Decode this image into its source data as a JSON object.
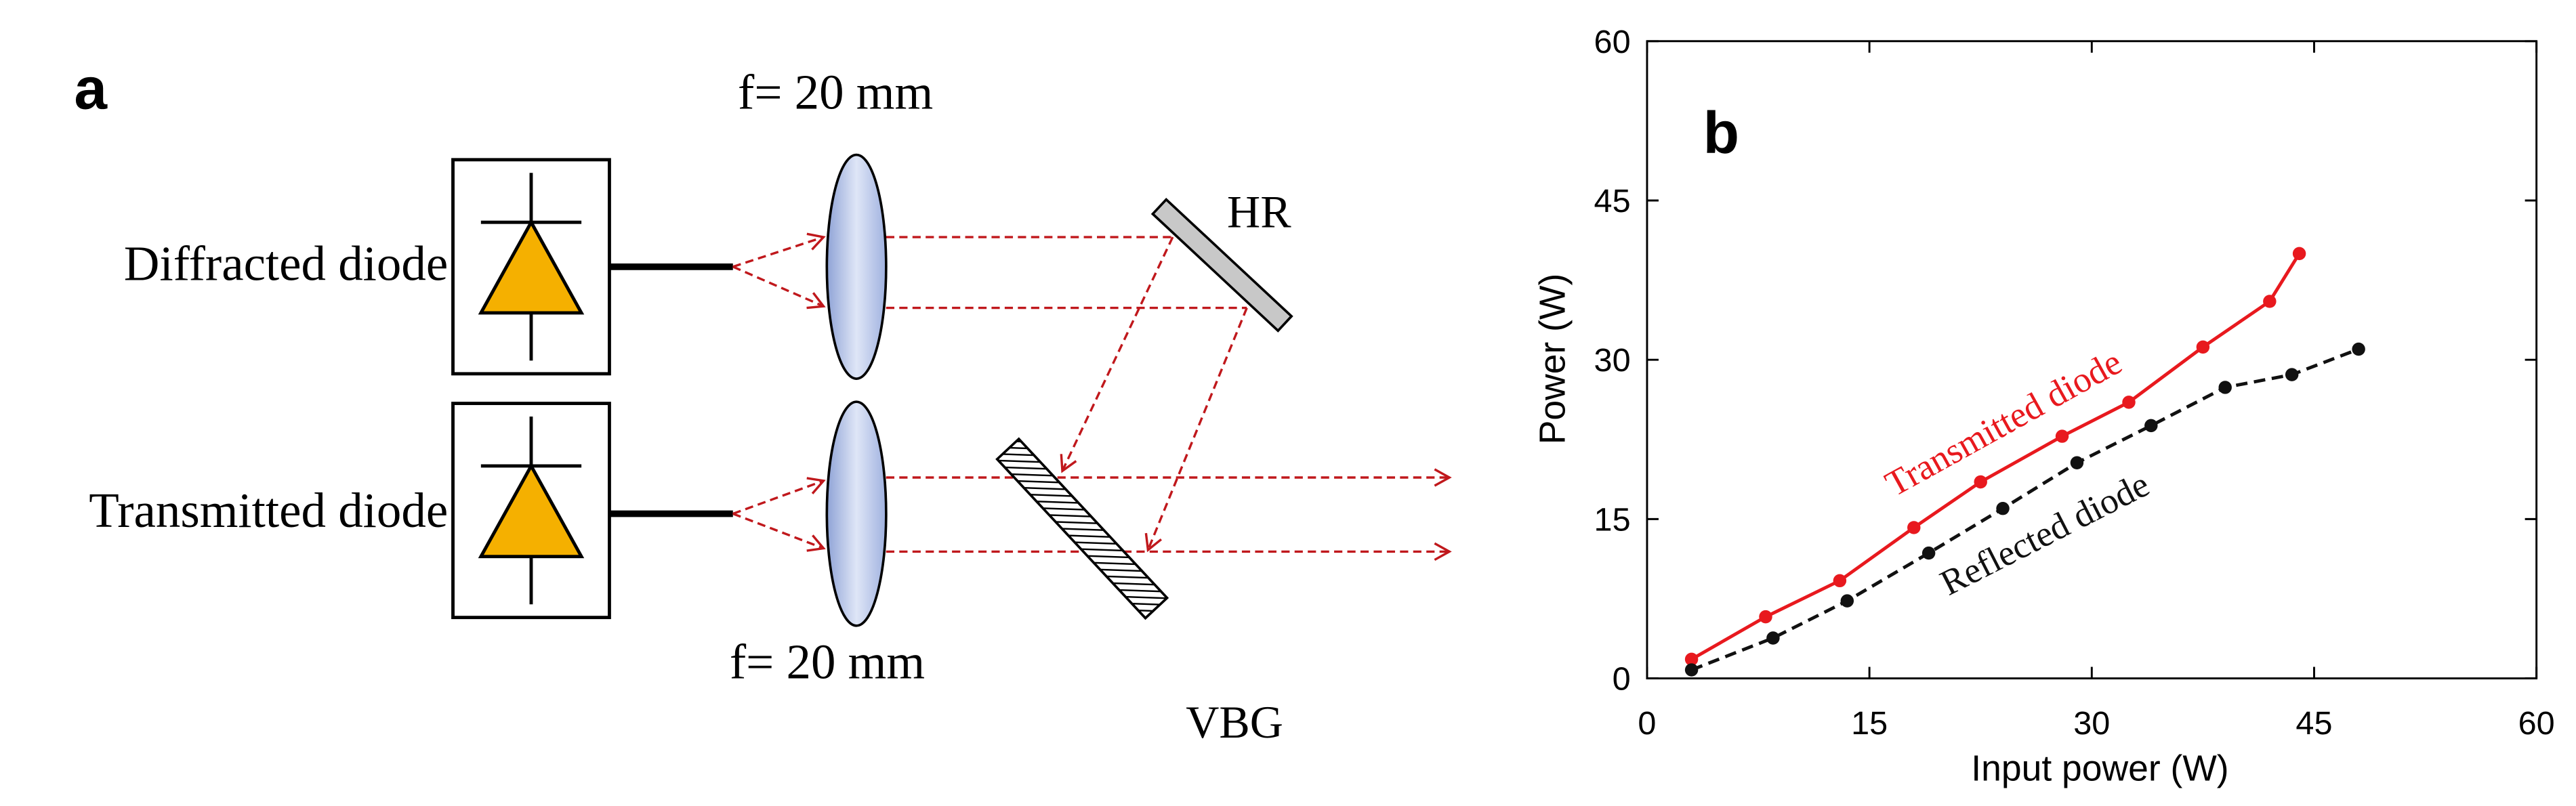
{
  "diagram": {
    "panel_label": "a",
    "top_lens_focal": "f= 20 mm",
    "bottom_lens_focal": "f= 20 mm",
    "top_source": "Diffracted diode",
    "bottom_source": "Transmitted diode",
    "mirror": "HR",
    "grating": "VBG"
  },
  "chart_data": {
    "type": "line",
    "panel_label": "b",
    "x_label": "Input power (W)",
    "y_label": "Power (W)",
    "xlim": [
      0,
      60
    ],
    "ylim": [
      0,
      60
    ],
    "xticks": [
      0,
      15,
      30,
      45,
      60
    ],
    "yticks": [
      0,
      15,
      30,
      45,
      60
    ],
    "series": [
      {
        "name": "Transmitted diode",
        "color": "#e8191e",
        "line_style": "solid",
        "x": [
          3,
          8,
          13,
          18,
          22.5,
          28,
          32.5,
          37.5,
          42,
          44
        ],
        "values": [
          1.8,
          5.8,
          9.2,
          14.2,
          18.5,
          22.8,
          26,
          31.2,
          35.5,
          40
        ]
      },
      {
        "name": "Reflected diode",
        "color": "#111111",
        "line_style": "dashed",
        "x": [
          3,
          8.5,
          13.5,
          19,
          24,
          29,
          34,
          39,
          43.5,
          48
        ],
        "values": [
          0.8,
          3.8,
          7.3,
          11.8,
          16,
          20.3,
          23.8,
          27.4,
          28.6,
          31
        ]
      }
    ]
  }
}
